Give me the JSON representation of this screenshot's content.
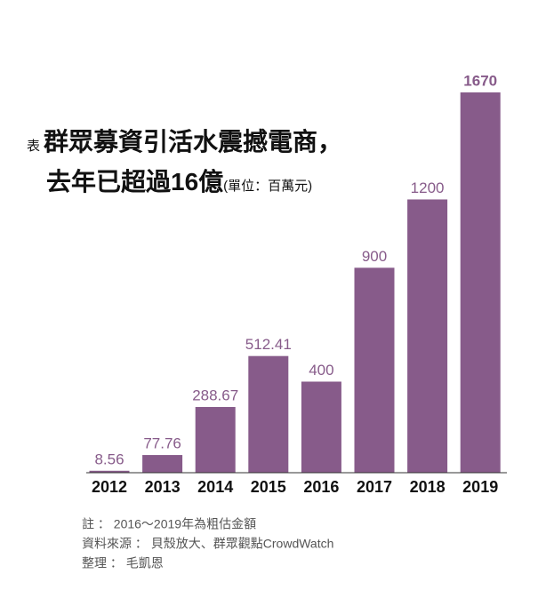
{
  "chart_data": {
    "type": "bar",
    "title_label": "表",
    "title": [
      "群眾募資引活水震撼電商，",
      "去年已超過16億"
    ],
    "unit": "(單位：百萬元)",
    "categories": [
      "2012",
      "2013",
      "2014",
      "2015",
      "2016",
      "2017",
      "2018",
      "2019"
    ],
    "values": [
      8.56,
      77.76,
      288.67,
      512.41,
      400,
      900,
      1200,
      1670
    ],
    "color": "#875b8a",
    "ylim": [
      0,
      1670
    ],
    "notes": [
      "註 ： 2016～2019年為粗估金額",
      "資料來源 ： 貝殼放大、群眾觀點CrowdWatch",
      "整理 ： 毛凱恩"
    ]
  }
}
